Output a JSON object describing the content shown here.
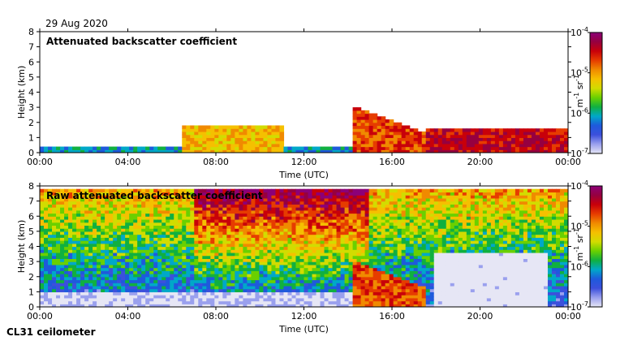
{
  "figure": {
    "date": "29 Aug 2020",
    "instrument": "CL31 ceilometer"
  },
  "colors": {
    "scale": [
      "#e6e6f5",
      "#9aa0ee",
      "#3c50dc",
      "#1e5adc",
      "#00a8c8",
      "#10b040",
      "#6ad000",
      "#d2dc00",
      "#f5c000",
      "#f08a00",
      "#e63c00",
      "#c8000a",
      "#960040",
      "#8c0078"
    ]
  },
  "chart_data": [
    {
      "type": "heatmap",
      "id": "attenuated",
      "title": "Attenuated backscatter coefficient",
      "xlabel": "Time (UTC)",
      "ylabel": "Height (km)",
      "xlim": [
        0,
        24
      ],
      "ylim": [
        0,
        8
      ],
      "x_ticks": [
        "00:00",
        "04:00",
        "08:00",
        "12:00",
        "16:00",
        "20:00",
        "00:00"
      ],
      "y_ticks": [
        "0",
        "1",
        "2",
        "3",
        "4",
        "5",
        "6",
        "7",
        "8"
      ],
      "colorbar": {
        "label": "m-1 sr-1",
        "label_base": "m",
        "label_exp1": "-1",
        "label_mid": " sr",
        "label_exp2": "-1",
        "scale": "log",
        "range": [
          1e-07,
          0.0001
        ],
        "ticks": [
          {
            "base": "10",
            "exp": "-4"
          },
          {
            "base": "10",
            "exp": "-5"
          },
          {
            "base": "10",
            "exp": "-6"
          },
          {
            "base": "10",
            "exp": "-7"
          }
        ]
      },
      "features": [
        {
          "name": "boundary layer",
          "t_start": 0,
          "t_end": 14.8,
          "top_km": 0.45,
          "log10_value": -6.0
        },
        {
          "name": "aerosol patches",
          "t_start": 6.5,
          "t_end": 11,
          "top_km": 1.9,
          "log10_value": -5.0
        },
        {
          "name": "tilted cloud layer",
          "t_start": 14.3,
          "t_end": 17.5,
          "base_km": 0.0,
          "top_km": 3.1,
          "log10_value": -4.6
        },
        {
          "name": "low cloud",
          "t_start": 17.5,
          "t_end": 24,
          "top_km": 1.7,
          "log10_value": -4.3
        }
      ]
    },
    {
      "type": "heatmap",
      "id": "raw",
      "title": "Raw attenuated backscatter coefficient",
      "xlabel": "Time (UTC)",
      "ylabel": "Height (km)",
      "xlim": [
        0,
        24
      ],
      "ylim": [
        0,
        8
      ],
      "x_ticks": [
        "00:00",
        "04:00",
        "08:00",
        "12:00",
        "16:00",
        "20:00",
        "00:00"
      ],
      "y_ticks": [
        "0",
        "1",
        "2",
        "3",
        "4",
        "5",
        "6",
        "7",
        "8"
      ],
      "colorbar": {
        "label": "m-1 sr-1",
        "label_base": "m",
        "label_exp1": "-1",
        "label_mid": " sr",
        "label_exp2": "-1",
        "scale": "log",
        "range": [
          1e-07,
          0.0001
        ],
        "ticks": [
          {
            "base": "10",
            "exp": "-4"
          },
          {
            "base": "10",
            "exp": "-5"
          },
          {
            "base": "10",
            "exp": "-6"
          },
          {
            "base": "10",
            "exp": "-7"
          }
        ]
      },
      "features": [
        {
          "name": "noise background",
          "t_start": 0,
          "t_end": 24,
          "top_km": 7.7,
          "log10_value": -5.5
        },
        {
          "name": "near-surface clear",
          "t_start": 0,
          "t_end": 14.8,
          "top_km": 0.9,
          "log10_value": -6.8
        },
        {
          "name": "tilted cloud layer",
          "t_start": 14.3,
          "t_end": 17.5,
          "base_km": 0.0,
          "top_km": 3.1,
          "log10_value": -4.6
        },
        {
          "name": "clear area",
          "t_start": 18,
          "t_end": 23,
          "top_km": 3.5,
          "log10_value": -7.0
        }
      ]
    }
  ]
}
